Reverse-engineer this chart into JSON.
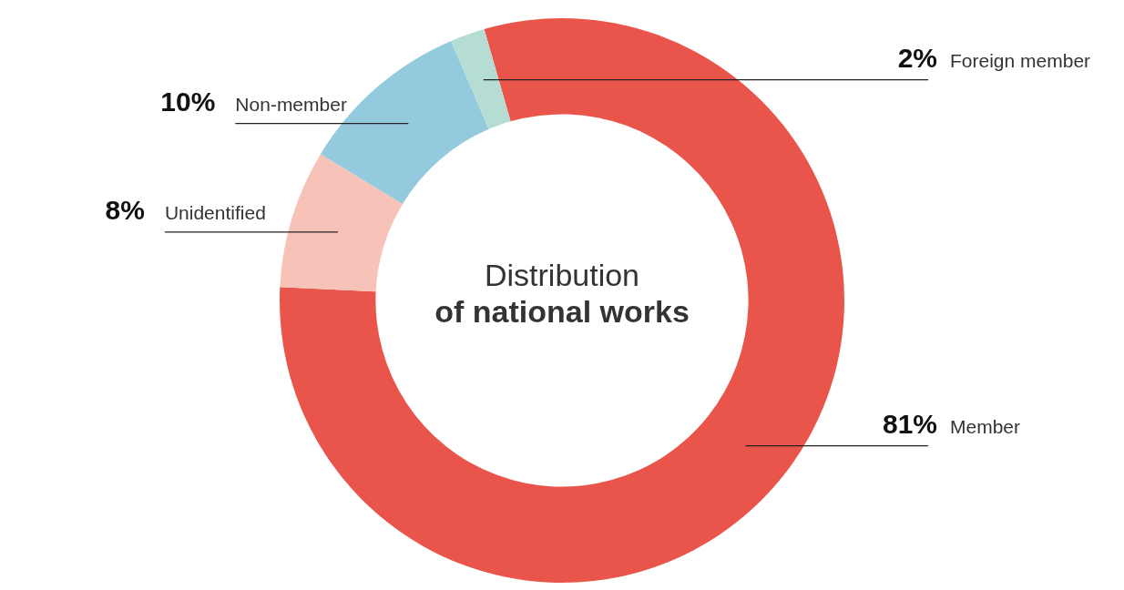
{
  "chart_data": {
    "type": "donut",
    "title": "Distribution",
    "subtitle": "of national works",
    "categories": [
      "Member",
      "Unidentified",
      "Non-member",
      "Foreign member"
    ],
    "values": [
      81,
      8,
      10,
      2
    ],
    "value_labels": [
      "81%",
      "8%",
      "10%",
      "2%"
    ],
    "colors": [
      "#e9554a",
      "#f7c3b9",
      "#94cadd",
      "#b5ddd3"
    ],
    "legend": false
  }
}
